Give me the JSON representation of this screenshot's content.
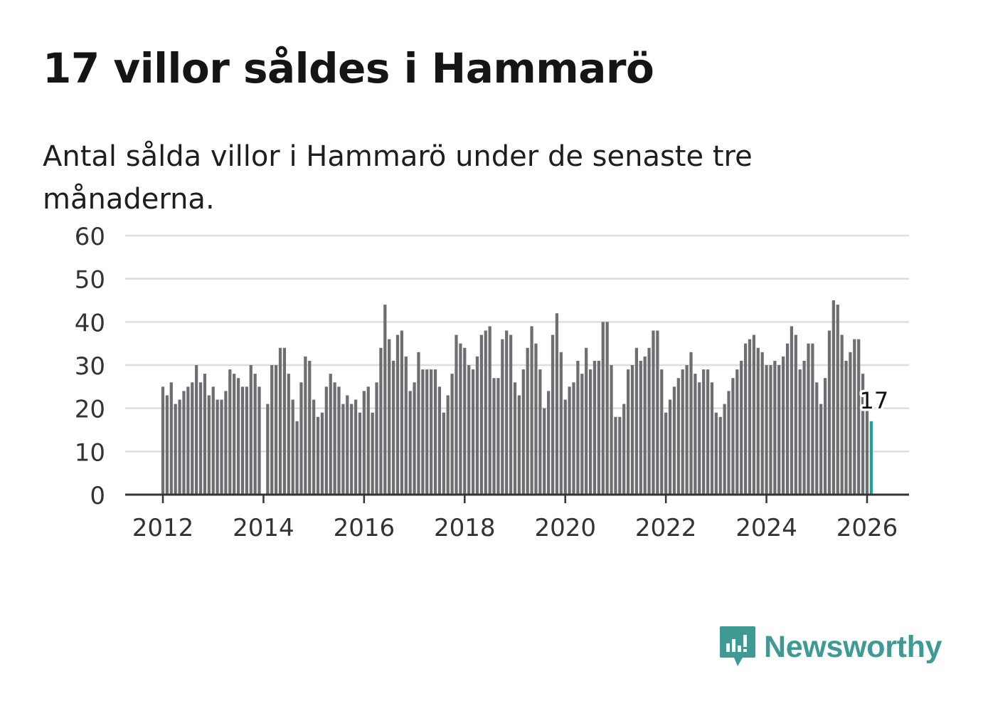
{
  "title": "17 villor såldes i Hammarö",
  "subtitle": "Antal sålda villor i Hammarö under de senaste tre månaderna.",
  "brand": {
    "name": "Newsworthy",
    "color": "#3f9a94",
    "icon": "bar-chart-speech-bubble-icon"
  },
  "colors": {
    "bar": "#6e6d71",
    "highlight": "#279d97",
    "grid": "#dddddd",
    "axis": "#333333"
  },
  "chart_data": {
    "type": "bar",
    "title": "17 villor såldes i Hammarö",
    "xlabel": "",
    "ylabel": "",
    "ylim": [
      0,
      60
    ],
    "yticks": [
      0,
      10,
      20,
      30,
      40,
      50,
      60
    ],
    "xtick_labels": [
      "2012",
      "2014",
      "2016",
      "2018",
      "2020",
      "2022",
      "2024",
      "2026"
    ],
    "x_start": "2012-01",
    "x_end": "2026-02",
    "highlight": {
      "label": "17",
      "value": 17,
      "month": "2026-02"
    },
    "series": [
      {
        "name": "Antal sålda villor (rullande tre månader)",
        "start": "2012-01",
        "values": [
          25,
          23,
          26,
          21,
          22,
          24,
          25,
          26,
          30,
          26,
          28,
          23,
          25,
          22,
          22,
          24,
          29,
          28,
          27,
          25,
          25,
          30,
          28,
          25,
          0,
          21,
          30,
          30,
          34,
          34,
          28,
          22,
          17,
          26,
          32,
          31,
          22,
          18,
          19,
          25,
          28,
          26,
          25,
          21,
          23,
          21,
          22,
          19,
          24,
          25,
          19,
          26,
          34,
          44,
          36,
          31,
          37,
          38,
          32,
          24,
          26,
          33,
          29,
          29,
          29,
          29,
          25,
          19,
          23,
          28,
          37,
          35,
          34,
          30,
          29,
          32,
          37,
          38,
          39,
          27,
          27,
          36,
          38,
          37,
          26,
          23,
          29,
          34,
          39,
          35,
          29,
          20,
          24,
          37,
          42,
          33,
          22,
          25,
          26,
          31,
          28,
          34,
          29,
          31,
          31,
          40,
          40,
          30,
          18,
          18,
          21,
          29,
          30,
          34,
          31,
          32,
          34,
          38,
          38,
          29,
          19,
          22,
          25,
          27,
          29,
          30,
          33,
          28,
          26,
          29,
          29,
          26,
          19,
          18,
          21,
          24,
          27,
          29,
          31,
          35,
          36,
          37,
          34,
          33,
          30,
          30,
          31,
          30,
          32,
          35,
          39,
          37,
          29,
          31,
          35,
          35,
          26,
          21,
          27,
          38,
          45,
          44,
          37,
          31,
          33,
          36,
          36,
          28,
          21,
          17
        ]
      }
    ]
  }
}
